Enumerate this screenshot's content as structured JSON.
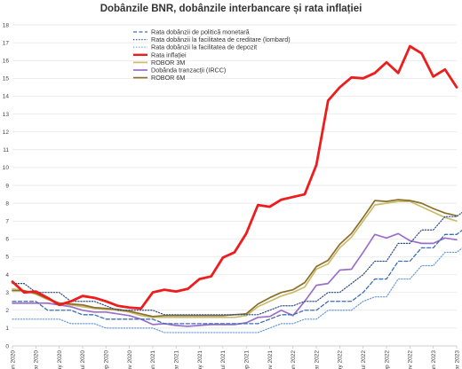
{
  "chart_data": {
    "type": "line",
    "title": "Dobânzile BNR, dobânzile interbancare și rata inflației",
    "xlabel": "",
    "ylabel": "",
    "ylim": [
      0,
      18
    ],
    "yticks": [
      0,
      1,
      2,
      3,
      4,
      5,
      6,
      7,
      8,
      9,
      10,
      11,
      12,
      13,
      14,
      15,
      16,
      17,
      18
    ],
    "x_labels": [
      "Jan 2020",
      "Mar 2020",
      "May 2020",
      "Jul 2020",
      "Sep 2020",
      "Nov 2020",
      "Jan 2021",
      "Mar 2021",
      "May 2021",
      "Jul 2021",
      "Sep 2021",
      "Nov 2021",
      "Jan 2022",
      "Mar 2022",
      "May 2022",
      "Jul 2022",
      "Sep 2022",
      "Nov 2022",
      "Jan 2023",
      "Mar 2023"
    ],
    "grid": "horizontal",
    "legend_position": "top",
    "series": [
      {
        "name": "Rata dobânzii de politică monetară",
        "color": "#3b6fb6",
        "style": "dashed",
        "values": [
          2.5,
          2.5,
          2.5,
          2.0,
          2.0,
          2.0,
          1.75,
          1.75,
          1.5,
          1.5,
          1.5,
          1.5,
          1.5,
          1.25,
          1.25,
          1.25,
          1.25,
          1.25,
          1.25,
          1.25,
          1.25,
          1.25,
          1.5,
          1.75,
          1.75,
          2.0,
          2.0,
          2.5,
          2.5,
          2.5,
          3.0,
          3.75,
          3.75,
          4.75,
          4.75,
          5.5,
          5.5,
          6.25,
          6.25,
          6.75,
          6.75,
          7.0,
          7.0,
          7.0
        ]
      },
      {
        "name": "Rata dobânzii la facilitatea de creditare (lombard)",
        "color": "#2f4e8a",
        "style": "dotted",
        "values": [
          3.5,
          3.5,
          3.0,
          3.0,
          3.0,
          2.5,
          2.5,
          2.5,
          2.25,
          2.0,
          2.0,
          2.0,
          2.0,
          1.75,
          1.75,
          1.75,
          1.75,
          1.75,
          1.75,
          1.75,
          1.75,
          1.75,
          2.0,
          2.25,
          2.25,
          2.5,
          2.5,
          3.0,
          3.0,
          3.5,
          4.0,
          4.75,
          4.75,
          5.75,
          5.75,
          6.5,
          6.5,
          7.25,
          7.25,
          7.75,
          7.75,
          8.0,
          8.0,
          8.0
        ]
      },
      {
        "name": "Rata dobânzii la facilitatea de depozit",
        "color": "#6a9bd8",
        "style": "dotted",
        "values": [
          1.5,
          1.5,
          1.5,
          1.5,
          1.5,
          1.25,
          1.25,
          1.25,
          1.0,
          1.0,
          1.0,
          1.0,
          1.0,
          0.75,
          0.75,
          0.75,
          0.75,
          0.75,
          0.75,
          0.75,
          0.75,
          0.75,
          1.0,
          1.25,
          1.25,
          1.5,
          1.5,
          2.0,
          2.0,
          2.0,
          2.5,
          2.75,
          2.75,
          3.75,
          3.75,
          4.5,
          4.5,
          5.25,
          5.25,
          5.75,
          5.75,
          6.0,
          6.0,
          6.0
        ]
      },
      {
        "name": "Rata inflației",
        "color": "#ee1c1c",
        "style": "solid-thick",
        "values": [
          3.6,
          3.0,
          3.05,
          2.7,
          2.3,
          2.5,
          2.8,
          2.7,
          2.5,
          2.25,
          2.15,
          2.1,
          3.0,
          3.15,
          3.05,
          3.2,
          3.75,
          3.9,
          4.95,
          5.25,
          6.3,
          7.9,
          7.8,
          8.2,
          8.35,
          8.5,
          10.15,
          13.75,
          14.5,
          15.05,
          15.0,
          15.3,
          15.9,
          15.3,
          16.8,
          16.4,
          15.1,
          15.5,
          14.5
        ]
      },
      {
        "name": "ROBOR 3M",
        "color": "#c9bd6c",
        "style": "solid",
        "values": [
          3.2,
          3.1,
          2.9,
          2.6,
          2.4,
          2.3,
          2.2,
          2.1,
          2.05,
          2.0,
          1.9,
          1.7,
          1.6,
          1.6,
          1.6,
          1.6,
          1.6,
          1.6,
          1.6,
          1.6,
          1.7,
          2.2,
          2.5,
          2.8,
          3.0,
          3.3,
          4.3,
          4.6,
          5.5,
          6.1,
          7.0,
          7.9,
          8.0,
          8.1,
          8.1,
          7.8,
          7.5,
          7.2,
          7.0
        ]
      },
      {
        "name": "Dobânda tranzacții (IRCC)",
        "color": "#9b6fc9",
        "style": "solid",
        "values": [
          2.4,
          2.4,
          2.4,
          2.4,
          2.3,
          2.2,
          2.0,
          1.9,
          1.9,
          1.8,
          1.7,
          1.5,
          1.2,
          1.25,
          1.15,
          1.1,
          1.15,
          1.2,
          1.2,
          1.2,
          1.3,
          1.6,
          1.65,
          2.0,
          1.7,
          2.5,
          3.4,
          3.5,
          4.25,
          4.3,
          5.25,
          6.25,
          6.05,
          6.3,
          5.9,
          5.75,
          5.75,
          6.05,
          5.95
        ]
      },
      {
        "name": "ROBOR 6M",
        "color": "#8b6f2a",
        "style": "solid",
        "values": [
          3.1,
          3.1,
          2.95,
          2.65,
          2.4,
          2.35,
          2.3,
          2.15,
          2.1,
          2.05,
          1.95,
          1.8,
          1.65,
          1.7,
          1.7,
          1.7,
          1.7,
          1.7,
          1.7,
          1.75,
          1.8,
          2.35,
          2.7,
          3.0,
          3.15,
          3.55,
          4.45,
          4.8,
          5.7,
          6.3,
          7.2,
          8.15,
          8.1,
          8.2,
          8.15,
          8.0,
          7.7,
          7.45,
          7.3
        ]
      }
    ]
  }
}
